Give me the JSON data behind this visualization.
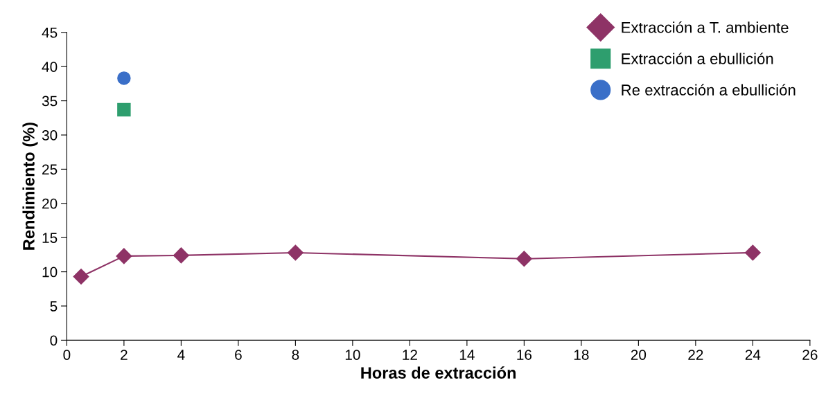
{
  "chart_data": {
    "type": "line",
    "xlabel": "Horas de extracción",
    "ylabel": "Rendimiento (%)",
    "xlim": [
      0,
      26
    ],
    "ylim": [
      0,
      45
    ],
    "xticks": [
      0,
      2,
      4,
      6,
      8,
      10,
      12,
      14,
      16,
      18,
      20,
      22,
      24,
      26
    ],
    "yticks": [
      0,
      5,
      10,
      15,
      20,
      25,
      30,
      35,
      40,
      45
    ],
    "grid": false,
    "legend": "top right",
    "series": [
      {
        "name": "Extracción a T. ambiente",
        "marker": "diamond",
        "color": "#8e3366",
        "x": [
          0.5,
          2,
          4,
          8,
          16,
          24
        ],
        "values": [
          9.3,
          12.3,
          12.4,
          12.8,
          11.9,
          12.8
        ]
      },
      {
        "name": "Extracción a ebullición",
        "type": "scatter",
        "marker": "square",
        "color": "#2e9e6e",
        "x": [
          2
        ],
        "values": [
          33.7
        ]
      },
      {
        "name": "Re extracción a ebullición",
        "type": "scatter",
        "marker": "circle",
        "color": "#3a6fc8",
        "x": [
          2
        ],
        "values": [
          38.3
        ]
      }
    ]
  }
}
